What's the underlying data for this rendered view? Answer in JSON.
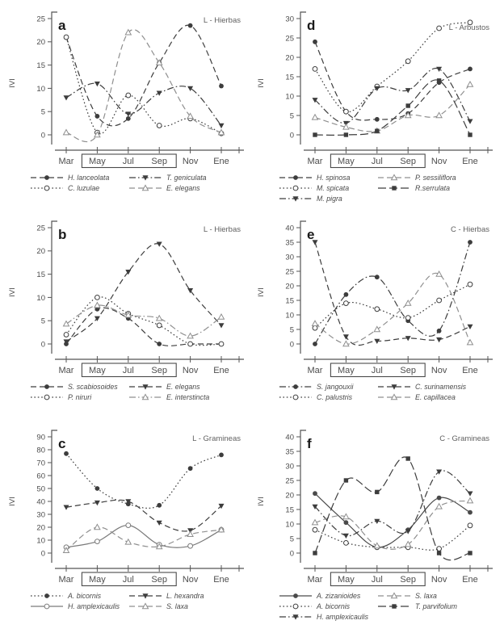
{
  "figure": {
    "ylabel": "IVI",
    "months": [
      "Mar",
      "May",
      "Jul",
      "Sep",
      "Nov",
      "Ene"
    ],
    "boxed_months": [
      "May",
      "Jul",
      "Sep"
    ],
    "colors": {
      "dark": "#3d3d3d",
      "grey": "#8f8f8f"
    }
  },
  "chart_data": [
    {
      "type": "line",
      "panel": "a",
      "title": "L - Hierbas",
      "ylabel": "IVI",
      "x": [
        "Mar",
        "May",
        "Jul",
        "Sep",
        "Nov",
        "Ene"
      ],
      "ylim": [
        0,
        25
      ],
      "yticks": [
        0,
        5,
        10,
        15,
        20,
        25
      ],
      "series": [
        {
          "name": "H. lanceolata",
          "marker": "circle-filled",
          "line": "dash",
          "color": "#3d3d3d",
          "values": [
            21,
            4,
            3.5,
            15.5,
            23.5,
            10.5
          ]
        },
        {
          "name": "C. luzulae",
          "marker": "circle-open",
          "line": "dotted",
          "color": "#3d3d3d",
          "values": [
            21,
            0.5,
            8.5,
            2,
            3.5,
            0.3
          ]
        },
        {
          "name": "T. geniculata",
          "marker": "triangle-down-filled",
          "line": "dashdot",
          "color": "#3d3d3d",
          "values": [
            8,
            11,
            4.5,
            9,
            10,
            2
          ]
        },
        {
          "name": "E. elegans",
          "marker": "triangle-up-open",
          "line": "dash",
          "color": "#8f8f8f",
          "values": [
            0.5,
            0,
            22,
            15.5,
            4,
            0.5
          ]
        }
      ]
    },
    {
      "type": "line",
      "panel": "d",
      "title": "L - Arbustos",
      "ylabel": "IVI",
      "x": [
        "Mar",
        "May",
        "Jul",
        "Sep",
        "Nov",
        "Ene"
      ],
      "ylim": [
        0,
        30
      ],
      "yticks": [
        0,
        5,
        10,
        15,
        20,
        25,
        30
      ],
      "series": [
        {
          "name": "H. spinosa",
          "marker": "circle-filled",
          "line": "dash",
          "color": "#3d3d3d",
          "values": [
            24,
            6,
            4,
            5.5,
            13.5,
            17
          ]
        },
        {
          "name": "M. spicata",
          "marker": "circle-open",
          "line": "dotted",
          "color": "#3d3d3d",
          "values": [
            17,
            6,
            12.5,
            19,
            27.5,
            29
          ]
        },
        {
          "name": "M. pigra",
          "marker": "triangle-down-filled",
          "line": "dashdot",
          "color": "#3d3d3d",
          "values": [
            9,
            3,
            12,
            11.5,
            17,
            3.5
          ]
        },
        {
          "name": "P. sessiliflora",
          "marker": "triangle-up-open",
          "line": "dash",
          "color": "#8f8f8f",
          "values": [
            4.5,
            2,
            1,
            5,
            5,
            13
          ]
        },
        {
          "name": "R.serrulata",
          "marker": "square-filled",
          "line": "longdash",
          "color": "#3d3d3d",
          "values": [
            0,
            0,
            1,
            7.5,
            14,
            0
          ]
        }
      ]
    },
    {
      "type": "line",
      "panel": "b",
      "title": "L - Hierbas",
      "ylabel": "IVI",
      "x": [
        "Mar",
        "May",
        "Jul",
        "Sep",
        "Nov",
        "Ene"
      ],
      "ylim": [
        0,
        25
      ],
      "yticks": [
        0,
        5,
        10,
        15,
        20,
        25
      ],
      "series": [
        {
          "name": "S. scabiosoides",
          "marker": "circle-filled",
          "line": "dash",
          "color": "#3d3d3d",
          "values": [
            0,
            7.5,
            5.5,
            0,
            0,
            0
          ]
        },
        {
          "name": "P. niruri",
          "marker": "circle-open",
          "line": "dotted",
          "color": "#3d3d3d",
          "values": [
            2,
            10,
            6.5,
            4,
            0,
            0
          ]
        },
        {
          "name": "E. elegans",
          "marker": "triangle-down-filled",
          "line": "dash",
          "color": "#3d3d3d",
          "values": [
            0.5,
            5.5,
            15.5,
            21.5,
            11.5,
            4
          ]
        },
        {
          "name": "E. interstincta",
          "marker": "triangle-up-open",
          "line": "dashdot",
          "color": "#8f8f8f",
          "values": [
            4.3,
            8.3,
            6.2,
            5.5,
            1.7,
            5.8
          ]
        }
      ]
    },
    {
      "type": "line",
      "panel": "e",
      "title": "C - Hierbas",
      "ylabel": "IVI",
      "x": [
        "Mar",
        "May",
        "Jul",
        "Sep",
        "Nov",
        "Ene"
      ],
      "ylim": [
        0,
        40
      ],
      "yticks": [
        0,
        5,
        10,
        15,
        20,
        25,
        30,
        35,
        40
      ],
      "series": [
        {
          "name": "S. jangouxii",
          "marker": "circle-filled",
          "line": "dashdot",
          "color": "#3d3d3d",
          "values": [
            0,
            17,
            23,
            8,
            4.5,
            35
          ]
        },
        {
          "name": "C. palustris",
          "marker": "circle-open",
          "line": "dotted",
          "color": "#3d3d3d",
          "values": [
            5.5,
            14,
            12,
            9,
            15,
            20.5
          ]
        },
        {
          "name": "C. surinamensis",
          "marker": "triangle-down-filled",
          "line": "dash",
          "color": "#3d3d3d",
          "values": [
            35,
            2.5,
            1,
            2,
            1.5,
            6
          ]
        },
        {
          "name": "E. capillacea",
          "marker": "triangle-up-open",
          "line": "dash",
          "color": "#8f8f8f",
          "values": [
            7,
            0,
            5,
            14,
            24,
            0.5
          ]
        }
      ]
    },
    {
      "type": "line",
      "panel": "c",
      "title": "L - Gramineas",
      "ylabel": "IVI",
      "x": [
        "Mar",
        "May",
        "Jul",
        "Sep",
        "Nov",
        "Ene"
      ],
      "ylim": [
        0,
        90
      ],
      "yticks": [
        0,
        10,
        20,
        30,
        40,
        50,
        60,
        70,
        80,
        90
      ],
      "series": [
        {
          "name": "A. bicornis",
          "marker": "circle-filled",
          "line": "dotted",
          "color": "#3d3d3d",
          "values": [
            77,
            50,
            38,
            37,
            65.5,
            76
          ]
        },
        {
          "name": "H. amplexicaulis",
          "marker": "circle-open",
          "line": "solid",
          "color": "#7a7a7a",
          "values": [
            4.5,
            9,
            21.5,
            6.5,
            5.5,
            18
          ]
        },
        {
          "name": "L. hexandra",
          "marker": "triangle-down-filled",
          "line": "dash",
          "color": "#3d3d3d",
          "values": [
            35.5,
            39,
            40,
            23.5,
            17.5,
            36.5
          ]
        },
        {
          "name": "S. laxa",
          "marker": "triangle-up-open",
          "line": "dash",
          "color": "#8f8f8f",
          "values": [
            2,
            20,
            8.5,
            5,
            14.5,
            18
          ]
        }
      ]
    },
    {
      "type": "line",
      "panel": "f",
      "title": "C - Gramineas",
      "ylabel": "IVI",
      "x": [
        "Mar",
        "May",
        "Jul",
        "Sep",
        "Nov",
        "Ene"
      ],
      "ylim": [
        0,
        40
      ],
      "yticks": [
        0,
        5,
        10,
        15,
        20,
        25,
        30,
        35,
        40
      ],
      "series": [
        {
          "name": "A. zizanioides",
          "marker": "circle-filled",
          "line": "solid",
          "color": "#4a4a4a",
          "values": [
            20.5,
            10.5,
            2,
            8,
            19,
            14
          ]
        },
        {
          "name": "A. bicornis",
          "marker": "circle-open",
          "line": "dotted",
          "color": "#3d3d3d",
          "values": [
            8,
            3.5,
            2,
            2,
            1.5,
            9.5
          ]
        },
        {
          "name": "H. amplexicaulis",
          "marker": "triangle-down-filled",
          "line": "dashdot",
          "color": "#3d3d3d",
          "values": [
            16,
            6,
            11,
            7.5,
            28,
            20.5
          ]
        },
        {
          "name": "S. laxa",
          "marker": "triangle-up-open",
          "line": "dash",
          "color": "#8f8f8f",
          "values": [
            10.5,
            12.5,
            2.5,
            3,
            16,
            18
          ]
        },
        {
          "name": "T. parvifolium",
          "marker": "square-filled",
          "line": "longdash",
          "color": "#3d3d3d",
          "values": [
            0,
            25,
            21,
            32.5,
            0,
            0
          ]
        }
      ]
    }
  ]
}
